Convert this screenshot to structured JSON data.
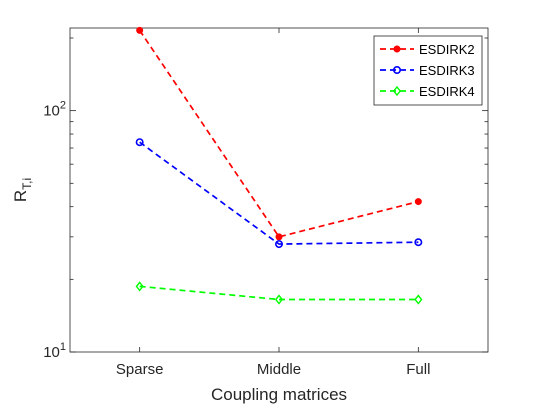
{
  "chart_data": {
    "type": "line",
    "categories": [
      "Sparse",
      "Middle",
      "Full"
    ],
    "xlabel": "Coupling matrices",
    "ylabel": "R",
    "ylabel_sub": "T,i",
    "yscale": "log",
    "ylim": [
      10,
      220
    ],
    "ytick_labels": [
      {
        "base": "10",
        "exp": "1",
        "value": 10
      },
      {
        "base": "10",
        "exp": "2",
        "value": 100
      }
    ],
    "grid": false,
    "legend_position": "top-right",
    "series": [
      {
        "name": "ESDIRK2",
        "color": "#ff0000",
        "marker": "dot",
        "values": [
          215,
          30,
          42
        ]
      },
      {
        "name": "ESDIRK3",
        "color": "#0000ff",
        "marker": "circle",
        "values": [
          74,
          28,
          28.5
        ]
      },
      {
        "name": "ESDIRK4",
        "color": "#00ff00",
        "marker": "diamond",
        "values": [
          18.7,
          16.5,
          16.5
        ]
      }
    ]
  }
}
